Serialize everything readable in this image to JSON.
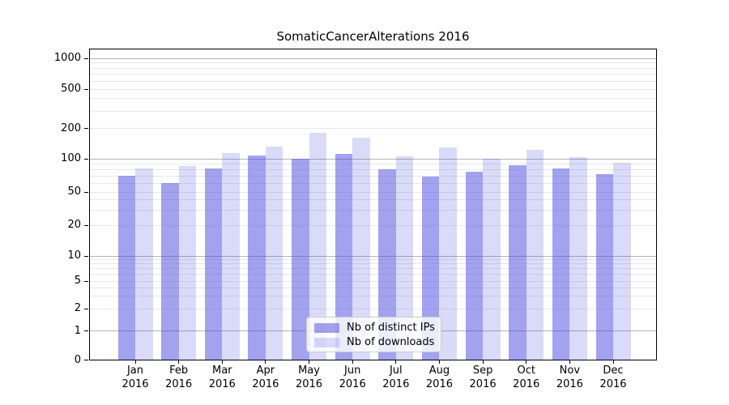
{
  "title": "SomaticCancerAlterations 2016",
  "chart_data": {
    "type": "bar",
    "title": "SomaticCancerAlterations 2016",
    "categories": [
      "Jan",
      "Feb",
      "Mar",
      "Apr",
      "May",
      "Jun",
      "Jul",
      "Aug",
      "Sep",
      "Oct",
      "Nov",
      "Dec"
    ],
    "year_label": "2016",
    "series": [
      {
        "name": "Nb of distinct IPs",
        "color": "rgba(70,70,224,0.5)",
        "values": [
          70,
          60,
          81,
          107,
          100,
          112,
          80,
          69,
          76,
          87,
          81,
          73
        ]
      },
      {
        "name": "Nb of downloads",
        "color": "rgba(70,70,224,0.2)",
        "values": [
          82,
          86,
          113,
          133,
          180,
          162,
          106,
          130,
          100,
          122,
          104,
          92
        ]
      }
    ],
    "ylabel": "",
    "xlabel": "",
    "y_axis_scale": "log-like (0,1,2,5,10,20,50,100,200,500,1000)",
    "y_tick_labels": [
      "0",
      "1",
      "2",
      "5",
      "10",
      "20",
      "50",
      "100",
      "200",
      "500",
      "1000"
    ],
    "y_tick_values": [
      0,
      1,
      2,
      5,
      10,
      20,
      50,
      100,
      200,
      500,
      1000
    ],
    "ylim": [
      0,
      1000
    ],
    "grid": true,
    "legend_position": "lower center"
  },
  "colors": {
    "bar_distinct_ips": "rgba(70,70,224,0.5)",
    "bar_downloads": "rgba(70,70,224,0.2)",
    "major_gridline": "#b3b3b3",
    "minor_gridline": "#e8e8e8",
    "axis": "#000000",
    "legend_border": "#cccccc"
  }
}
